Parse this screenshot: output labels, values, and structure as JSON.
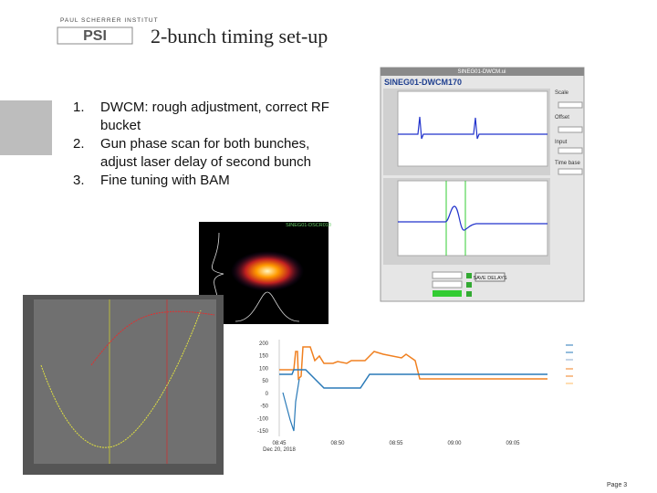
{
  "header": {
    "logo_text": "PAUL SCHERRER INSTITUT",
    "logo_mark": "PSI",
    "title": "2-bunch timing set-up"
  },
  "list": {
    "items": [
      {
        "number": "1.",
        "text": "DWCM: rough adjustment, correct RF bucket"
      },
      {
        "number": "2.",
        "text": "Gun phase scan for both bunches, adjust laser delay of second bunch"
      },
      {
        "number": "3.",
        "text": "Fine tuning with BAM"
      }
    ]
  },
  "dwcm_window": {
    "window_title": "SINEG01-DWCM.ui",
    "device": "SINEG01-DWCM170",
    "controls": [
      "Scale",
      "Offset",
      "Input",
      "Time base"
    ],
    "button": "SAVE DELAYS"
  },
  "camera": {
    "title": "SINEG01-DSCR010"
  },
  "trend": {
    "yticks": [
      "200",
      "150",
      "100",
      "50",
      "0",
      "-50",
      "-100",
      "-150"
    ],
    "xticks": [
      "08:45",
      "08:50",
      "08:55",
      "09:00",
      "09:05"
    ],
    "date": "Dec 20, 2018"
  },
  "footer": {
    "page": "Page 3"
  }
}
